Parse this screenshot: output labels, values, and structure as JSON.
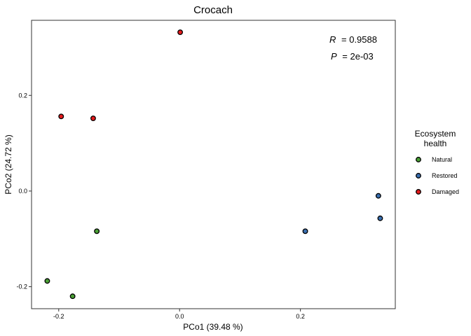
{
  "chart_data": {
    "type": "scatter",
    "title": "Crocach",
    "xlabel": "PCo1 (39.48 %)",
    "ylabel": "PCo2 (24.72 %)",
    "xlim": [
      -0.245,
      0.357
    ],
    "ylim": [
      -0.246,
      0.357
    ],
    "x_ticks": [
      -0.2,
      0.0,
      0.2
    ],
    "x_tick_labels": [
      "-0.2",
      "0.0",
      "0.2"
    ],
    "y_ticks": [
      -0.2,
      0.0,
      0.2
    ],
    "y_tick_labels": [
      "-0.2",
      "0.0",
      "0.2"
    ],
    "grid": false,
    "legend_position": "right",
    "legend": {
      "title_line1": "Ecosystem",
      "title_line2": "health"
    },
    "annotations": {
      "r_symbol": "R",
      "r_value": "= 0.9588",
      "p_symbol": "P",
      "p_value": "= 2e-03"
    },
    "series": [
      {
        "name": "Natural",
        "color": "#4aa035",
        "points": [
          {
            "x": -0.137,
            "y": -0.084
          },
          {
            "x": -0.219,
            "y": -0.188
          },
          {
            "x": -0.177,
            "y": -0.22
          }
        ]
      },
      {
        "name": "Restored",
        "color": "#3a6fb0",
        "points": [
          {
            "x": 0.208,
            "y": -0.084
          },
          {
            "x": 0.329,
            "y": -0.01
          },
          {
            "x": 0.332,
            "y": -0.057
          }
        ]
      },
      {
        "name": "Damaged",
        "color": "#e41a1c",
        "points": [
          {
            "x": 0.001,
            "y": 0.332
          },
          {
            "x": -0.196,
            "y": 0.156
          },
          {
            "x": -0.143,
            "y": 0.152
          }
        ]
      }
    ]
  }
}
